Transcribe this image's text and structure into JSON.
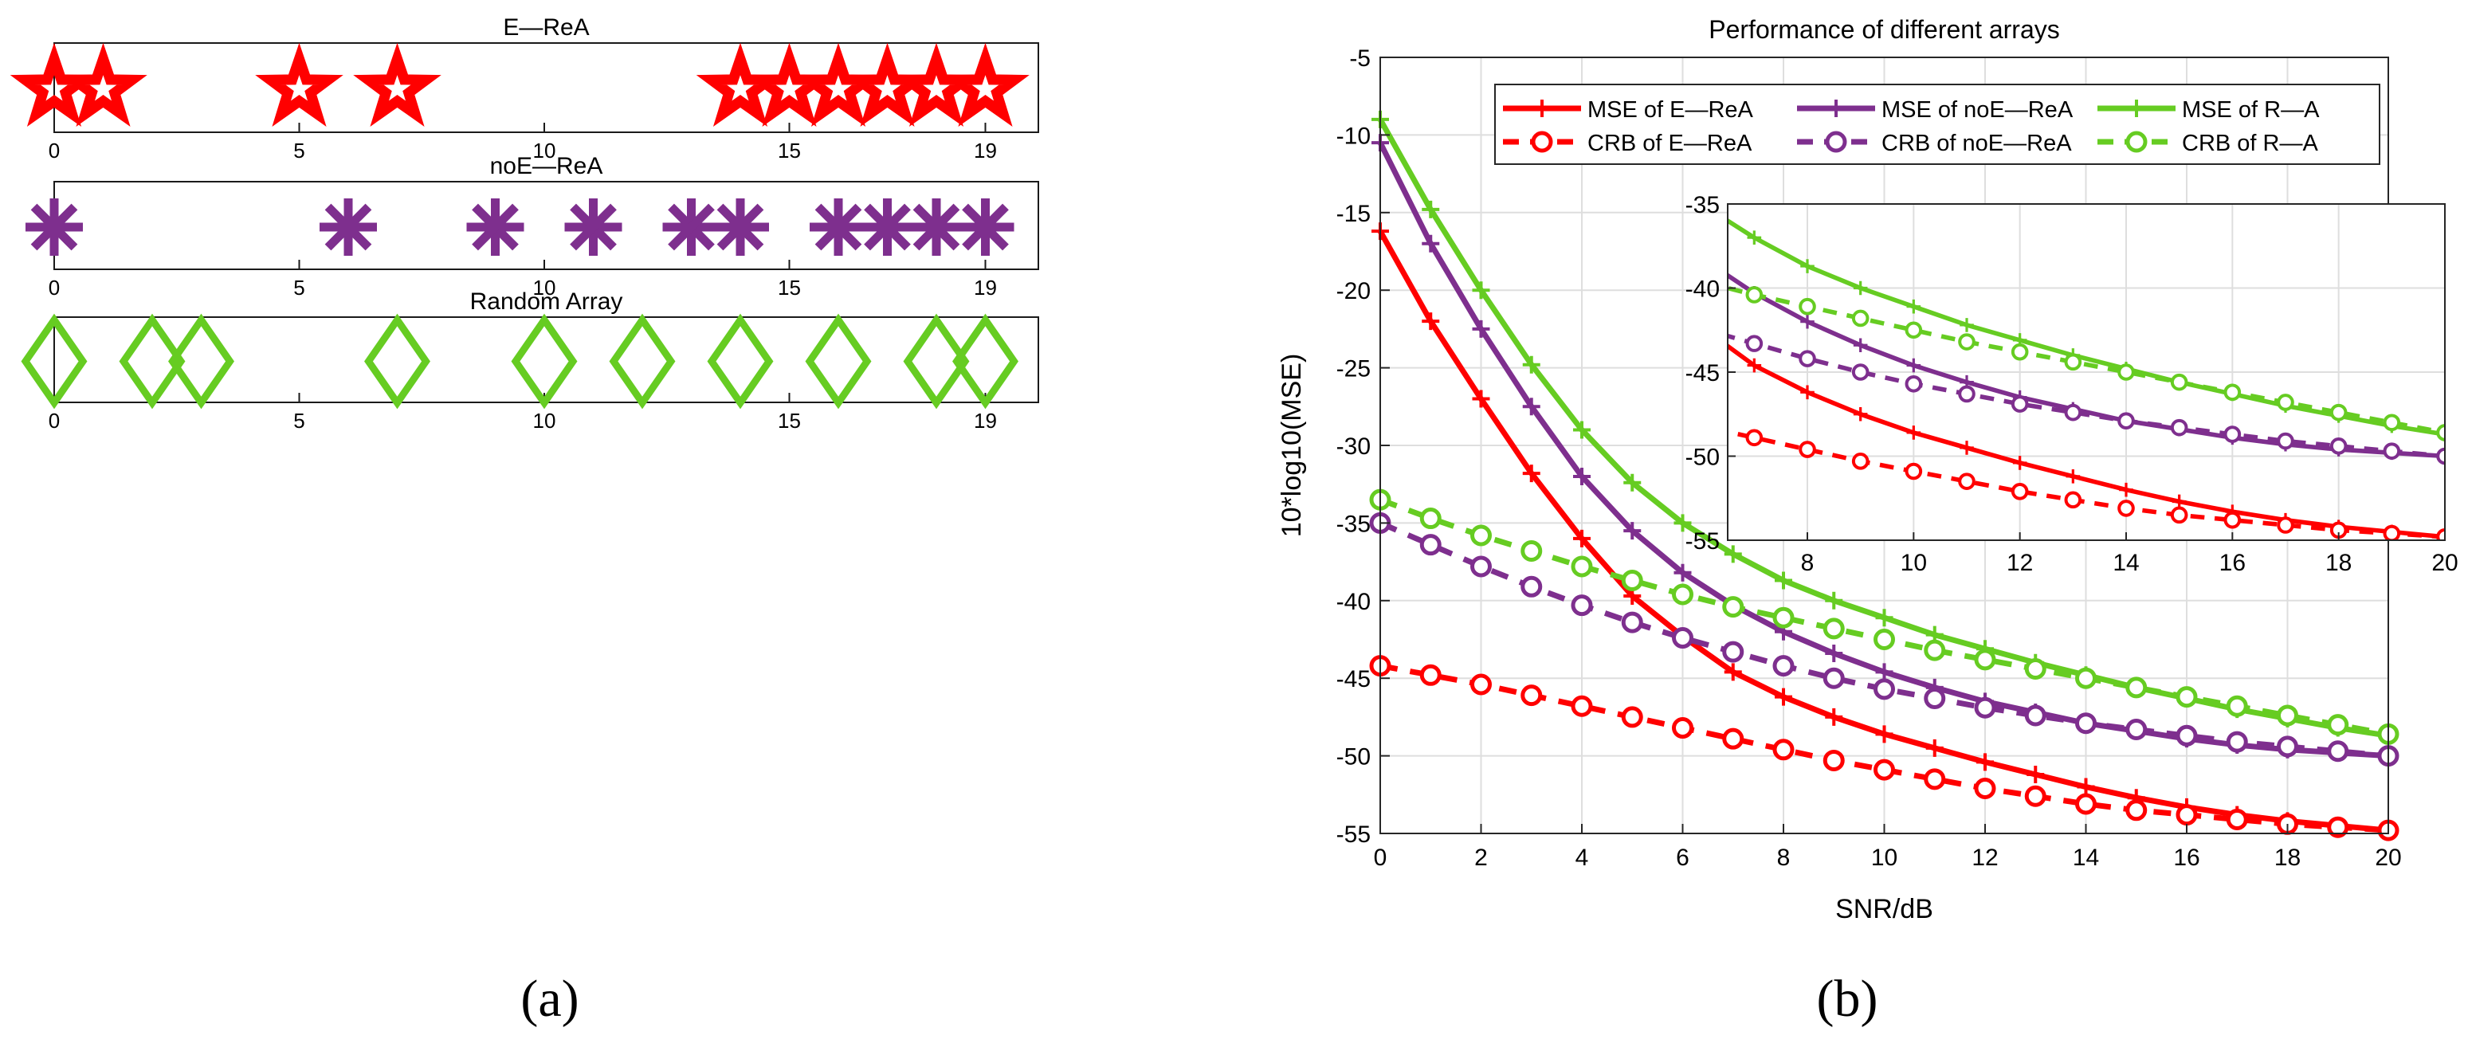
{
  "captions": {
    "a": "(a)",
    "b": "(b)"
  },
  "chart_data": [
    {
      "type": "scatter",
      "title": "E—ReA",
      "marker": "star",
      "color": "#FF0000",
      "xlim": [
        0,
        19
      ],
      "xticks": [
        0,
        5,
        10,
        15,
        19
      ],
      "x": [
        0,
        1,
        5,
        7,
        14,
        15,
        16,
        17,
        18,
        19
      ]
    },
    {
      "type": "scatter",
      "title": "noE—ReA",
      "marker": "asterisk",
      "color": "#7E2F8E",
      "xlim": [
        0,
        19
      ],
      "xticks": [
        0,
        5,
        10,
        15,
        19
      ],
      "x": [
        0,
        6,
        9,
        11,
        13,
        14,
        16,
        17,
        18,
        19
      ]
    },
    {
      "type": "scatter",
      "title": "Random Array",
      "marker": "diamond",
      "color": "#66CC22",
      "xlim": [
        0,
        19
      ],
      "xticks": [
        0,
        5,
        10,
        15,
        19
      ],
      "x": [
        0,
        2,
        3,
        7,
        10,
        12,
        14,
        16,
        18,
        19
      ]
    },
    {
      "type": "line",
      "title": "Performance of different arrays",
      "xlabel": "SNR/dB",
      "ylabel": "10*log10(MSE)",
      "xlim": [
        0,
        20
      ],
      "ylim": [
        -55,
        -5
      ],
      "xticks": [
        0,
        2,
        4,
        6,
        8,
        10,
        12,
        14,
        16,
        18,
        20
      ],
      "yticks": [
        -5,
        -10,
        -15,
        -20,
        -25,
        -30,
        -35,
        -40,
        -45,
        -50,
        -55
      ],
      "grid": true,
      "x": [
        0,
        1,
        2,
        3,
        4,
        5,
        6,
        7,
        8,
        9,
        10,
        11,
        12,
        13,
        14,
        15,
        16,
        17,
        18,
        19,
        20
      ],
      "series": [
        {
          "name": "MSE of E—ReA",
          "color": "#FF0000",
          "dash": false,
          "marker": "plus",
          "values": [
            -16.2,
            -22,
            -27,
            -31.8,
            -36,
            -39.7,
            -42.3,
            -44.6,
            -46.2,
            -47.5,
            -48.6,
            -49.5,
            -50.4,
            -51.2,
            -52,
            -52.7,
            -53.3,
            -53.8,
            -54.2,
            -54.5,
            -54.8
          ]
        },
        {
          "name": "CRB of E—ReA",
          "color": "#FF0000",
          "dash": true,
          "marker": "circle",
          "values": [
            -44.2,
            -44.8,
            -45.4,
            -46.1,
            -46.8,
            -47.5,
            -48.2,
            -48.9,
            -49.6,
            -50.3,
            -50.9,
            -51.5,
            -52.1,
            -52.6,
            -53.1,
            -53.5,
            -53.8,
            -54.1,
            -54.4,
            -54.6,
            -54.8
          ]
        },
        {
          "name": "MSE of noE—ReA",
          "color": "#7E2F8E",
          "dash": false,
          "marker": "plus",
          "values": [
            -10.5,
            -17,
            -22.5,
            -27.5,
            -32,
            -35.5,
            -38.2,
            -40.3,
            -42,
            -43.4,
            -44.6,
            -45.6,
            -46.5,
            -47.2,
            -47.9,
            -48.4,
            -48.9,
            -49.3,
            -49.6,
            -49.8,
            -50
          ]
        },
        {
          "name": "CRB of noE—ReA",
          "color": "#7E2F8E",
          "dash": true,
          "marker": "circle",
          "values": [
            -35,
            -36.4,
            -37.8,
            -39.1,
            -40.3,
            -41.4,
            -42.4,
            -43.3,
            -44.2,
            -45,
            -45.7,
            -46.3,
            -46.9,
            -47.4,
            -47.9,
            -48.3,
            -48.7,
            -49.1,
            -49.4,
            -49.7,
            -50
          ]
        },
        {
          "name": "MSE of R—A",
          "color": "#66CC22",
          "dash": false,
          "marker": "plus",
          "values": [
            -9,
            -14.8,
            -20,
            -24.8,
            -29,
            -32.4,
            -35,
            -37,
            -38.7,
            -40,
            -41.1,
            -42.2,
            -43.1,
            -44,
            -44.8,
            -45.6,
            -46.3,
            -47,
            -47.6,
            -48.2,
            -48.7
          ]
        },
        {
          "name": "CRB of R—A",
          "color": "#66CC22",
          "dash": true,
          "marker": "circle",
          "values": [
            -33.5,
            -34.7,
            -35.8,
            -36.8,
            -37.8,
            -38.7,
            -39.6,
            -40.4,
            -41.1,
            -41.8,
            -42.5,
            -43.2,
            -43.8,
            -44.4,
            -45,
            -45.6,
            -46.2,
            -46.8,
            -47.4,
            -48,
            -48.6
          ]
        }
      ],
      "inset": {
        "xlim": [
          6.5,
          20
        ],
        "ylim": [
          -55,
          -35
        ],
        "xticks": [
          8,
          10,
          12,
          14,
          16,
          18,
          20
        ],
        "yticks": [
          -35,
          -40,
          -45,
          -50,
          -55
        ]
      }
    }
  ]
}
